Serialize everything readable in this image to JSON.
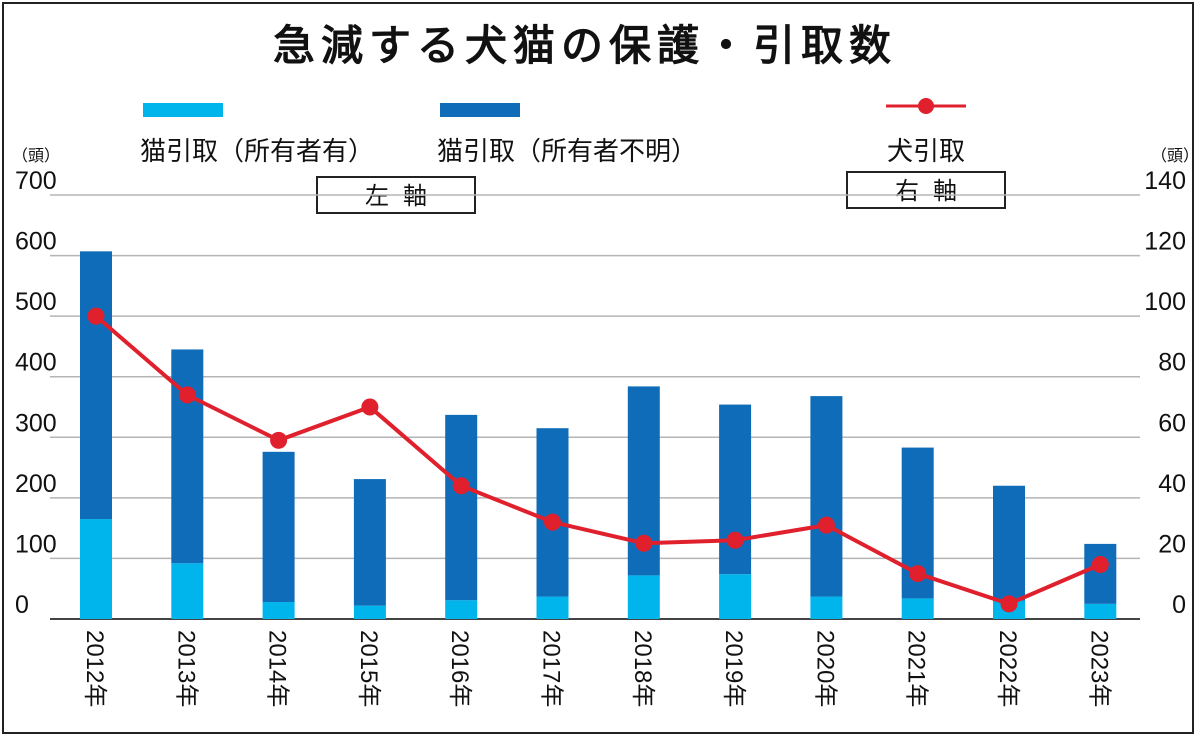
{
  "title": "急減する犬猫の保護・引取数",
  "legend": {
    "cat_owned": "猫引取（所有者有）",
    "cat_unknown": "猫引取（所有者不明）",
    "dog": "犬引取"
  },
  "axis_labels": {
    "left_box": "左軸",
    "right_box": "右軸",
    "left_unit": "（頭）",
    "right_unit": "（頭）"
  },
  "colors": {
    "cat_owned": "#00b5ec",
    "cat_unknown": "#0f6cb8",
    "dog_line": "#e0202c",
    "grid": "#b5b5b5",
    "frame": "#222222"
  },
  "chart_data": {
    "type": "bar",
    "title": "急減する犬猫の保護・引取数",
    "categories": [
      "2012年",
      "2013年",
      "2014年",
      "2015年",
      "2016年",
      "2017年",
      "2018年",
      "2019年",
      "2020年",
      "2021年",
      "2022年",
      "2023年"
    ],
    "series": [
      {
        "name": "猫引取（所有者有）",
        "axis": "left",
        "stack": true,
        "values": [
          165,
          92,
          28,
          22,
          31,
          37,
          72,
          74,
          37,
          34,
          30,
          25
        ]
      },
      {
        "name": "猫引取（所有者不明）",
        "axis": "left",
        "stack": true,
        "values": [
          442,
          353,
          248,
          209,
          306,
          278,
          312,
          280,
          331,
          249,
          190,
          99
        ]
      },
      {
        "name": "犬引取",
        "axis": "right",
        "type": "line",
        "values": [
          100,
          74,
          59,
          70,
          44,
          32,
          25,
          26,
          31,
          15,
          5,
          18
        ]
      }
    ],
    "left_axis": {
      "ylim": [
        0,
        700
      ],
      "ticks": [
        0,
        100,
        200,
        300,
        400,
        500,
        600,
        700
      ],
      "unit": "（頭）"
    },
    "right_axis": {
      "ylim": [
        0,
        140
      ],
      "ticks": [
        0,
        20,
        40,
        60,
        80,
        100,
        120,
        140
      ],
      "unit": "（頭）"
    },
    "xlabel": "",
    "ylabel": "",
    "grid": true
  }
}
